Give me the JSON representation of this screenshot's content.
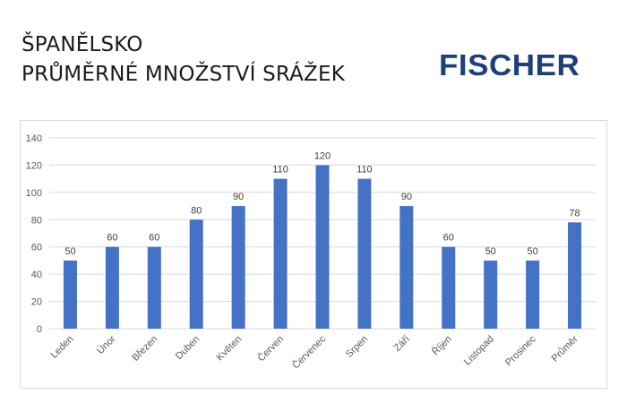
{
  "header": {
    "title_line1": "ŠPANĚLSKO",
    "title_line2": "PRŮMĚRNÉ MNOŽSTVÍ SRÁŽEK",
    "logo_text": "FISCHER"
  },
  "colors": {
    "bar": "#4472c4",
    "logo": "#1f3f7a",
    "grid": "#d9d9d9"
  },
  "chart_data": {
    "type": "bar",
    "categories": [
      "Leden",
      "Únor",
      "Březen",
      "Duben",
      "Květen",
      "Červen",
      "Červenec",
      "Srpen",
      "Září",
      "Říjen",
      "Listopad",
      "Prosinec",
      "Průměr"
    ],
    "values": [
      50,
      60,
      60,
      80,
      90,
      110,
      120,
      110,
      90,
      60,
      50,
      50,
      78
    ],
    "ylim": [
      0,
      140
    ],
    "yticks": [
      0,
      20,
      40,
      60,
      80,
      100,
      120,
      140
    ],
    "grid": true,
    "data_labels": true
  }
}
